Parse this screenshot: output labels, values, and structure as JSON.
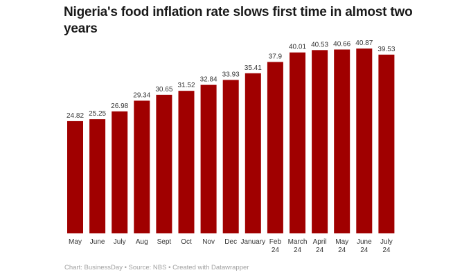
{
  "chart_data": {
    "type": "bar",
    "title": "Nigeria's food inflation rate slows first time in almost two years",
    "categories": [
      "May",
      "June",
      "July",
      "Aug",
      "Sept",
      "Oct",
      "Nov",
      "Dec",
      "January",
      "Feb 24",
      "March 24",
      "April 24",
      "May 24",
      "June 24",
      "July 24"
    ],
    "values": [
      24.82,
      25.25,
      26.98,
      29.34,
      30.65,
      31.52,
      32.84,
      33.93,
      35.41,
      37.9,
      40.01,
      40.53,
      40.66,
      40.87,
      39.53
    ],
    "value_labels": [
      "24.82",
      "25.25",
      "26.98",
      "29.34",
      "30.65",
      "31.52",
      "32.84",
      "33.93",
      "35.41",
      "37.9",
      "40.01",
      "40.53",
      "40.66",
      "40.87",
      "39.53"
    ],
    "xlabel": "",
    "ylabel": "",
    "ylim": [
      0,
      41.5
    ],
    "grid": false,
    "bar_color": "#a00000"
  },
  "footer": "Chart: BusinessDay • Source: NBS • Created with Datawrapper"
}
